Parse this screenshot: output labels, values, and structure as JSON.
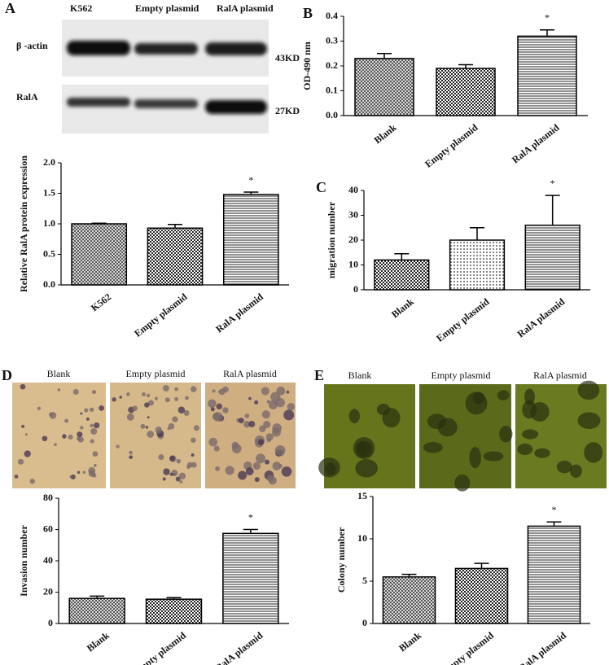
{
  "panel_labels": [
    "A",
    "B",
    "C",
    "D",
    "E"
  ],
  "blot": {
    "lanes": [
      "K562",
      "Empty plasmid",
      "RalA plasmid"
    ],
    "rows": [
      "β -actin",
      "RalA"
    ],
    "sizes": [
      "43KD",
      "27KD"
    ]
  },
  "micrographs": {
    "invasion": [
      "Blank",
      "Empty plasmid",
      "RalA plasmid"
    ],
    "colony": [
      "Blank",
      "Empty plasmid",
      "RalA plasmid"
    ]
  },
  "chart_data": [
    {
      "type": "bar",
      "ylabel": "Relative RalA protein expression",
      "categories": [
        "K562",
        "Empty plasmid",
        "RalA plasmid"
      ],
      "values": [
        1.0,
        0.93,
        1.48
      ],
      "errors": [
        0.01,
        0.06,
        0.04
      ],
      "significance": [
        null,
        null,
        "*"
      ],
      "patterns": [
        "hatch",
        "check",
        "hlines"
      ],
      "ylim": [
        0,
        2.0
      ],
      "yticks": [
        {
          "value": 0,
          "label": "0.0"
        },
        {
          "value": 0.5,
          "label": "0.5"
        },
        {
          "value": 1.0,
          "label": "1.0"
        },
        {
          "value": 1.5,
          "label": "1.5"
        },
        {
          "value": 2.0,
          "label": "2.0"
        }
      ]
    },
    {
      "type": "bar",
      "ylabel": "OD-490 nm",
      "categories": [
        "Blank",
        "Empty plasmid",
        "RalA plasmid"
      ],
      "values": [
        0.23,
        0.19,
        0.32
      ],
      "errors": [
        0.02,
        0.015,
        0.025
      ],
      "significance": [
        null,
        null,
        "*"
      ],
      "patterns": [
        "hatch",
        "check",
        "hlines"
      ],
      "ylim": [
        0,
        0.4
      ],
      "yticks": [
        {
          "value": 0,
          "label": "0.0"
        },
        0.1,
        0.2,
        0.3,
        0.4
      ]
    },
    {
      "type": "bar",
      "ylabel": "migration number",
      "categories": [
        "Blank",
        "Empty plasmid",
        "RalA plasmid"
      ],
      "values": [
        12,
        20,
        26
      ],
      "errors": [
        2.5,
        5,
        12
      ],
      "significance": [
        null,
        null,
        "*"
      ],
      "patterns": [
        "check",
        "dots",
        "hlines"
      ],
      "ylim": [
        0,
        40
      ],
      "yticks": [
        0,
        10,
        20,
        30,
        40
      ]
    },
    {
      "type": "bar",
      "ylabel": "Invasion number",
      "categories": [
        "Blank",
        "Empty plasmid",
        "RalA plasmid"
      ],
      "values": [
        16,
        15.5,
        57.5
      ],
      "errors": [
        1.5,
        1,
        2.5
      ],
      "significance": [
        null,
        null,
        "*"
      ],
      "patterns": [
        "hatch",
        "check",
        "hlines"
      ],
      "ylim": [
        0,
        80
      ],
      "yticks": [
        0,
        20,
        40,
        60,
        80
      ]
    },
    {
      "type": "bar",
      "ylabel": "Colony number",
      "categories": [
        "Blank",
        "Empty plasmid",
        "RalA plasmid"
      ],
      "values": [
        5.5,
        6.5,
        11.5
      ],
      "errors": [
        0.3,
        0.6,
        0.5
      ],
      "significance": [
        null,
        null,
        "*"
      ],
      "patterns": [
        "hatch",
        "check",
        "hlines"
      ],
      "ylim": [
        0,
        15
      ],
      "yticks": [
        0,
        5,
        10,
        15
      ]
    }
  ]
}
